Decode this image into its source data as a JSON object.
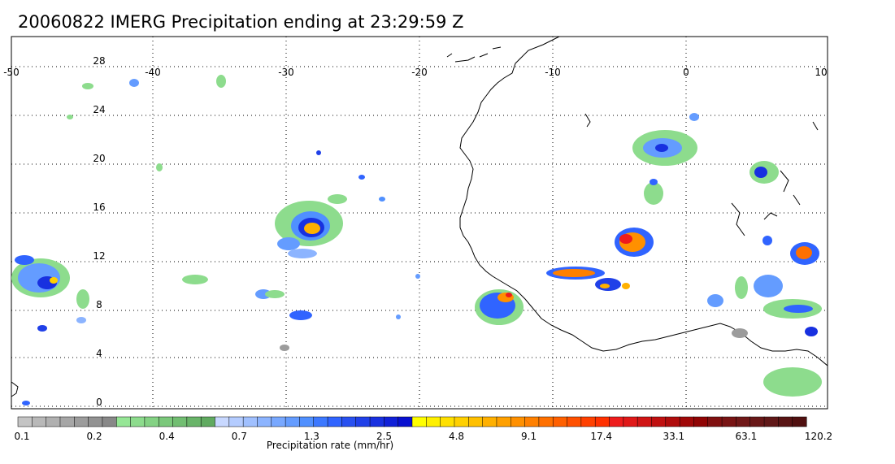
{
  "title": "20060822 IMERG Precipitation ending at 23:29:59 Z",
  "map": {
    "lon_ticks": [
      "-50",
      "-40",
      "-30",
      "-20",
      "-10",
      "0",
      "10"
    ],
    "lat_ticks": [
      "28",
      "24",
      "20",
      "16",
      "12",
      "8",
      "4",
      "0"
    ]
  },
  "colorbar": {
    "title": "Precipitation rate (mm/hr)",
    "tick_labels": [
      "0.1",
      "0.2",
      "0.4",
      "0.7",
      "1.3",
      "2.5",
      "4.8",
      "9.1",
      "17.4",
      "33.1",
      "63.1",
      "120.2"
    ],
    "colors": [
      "#c4c4c4",
      "#b8b8b8",
      "#b0b0b0",
      "#a6a6a6",
      "#9c9c9c",
      "#929292",
      "#888888",
      "#96e696",
      "#8ddc8d",
      "#84d284",
      "#7bc87b",
      "#72be72",
      "#69b469",
      "#60aa60",
      "#c8d8ff",
      "#b4ccff",
      "#a0c0ff",
      "#8cb4ff",
      "#78a8ff",
      "#649cff",
      "#5090ff",
      "#3c78ff",
      "#3064ff",
      "#2850f0",
      "#2040e8",
      "#1830e0",
      "#1020d8",
      "#0810d0",
      "#ffff00",
      "#fff000",
      "#ffe000",
      "#ffd000",
      "#ffc000",
      "#ffb000",
      "#ffa000",
      "#ff9000",
      "#ff8000",
      "#ff7000",
      "#ff6000",
      "#ff5000",
      "#ff4000",
      "#ff3000",
      "#ee1c1c",
      "#e01818",
      "#d01414",
      "#c01010",
      "#b00c0c",
      "#a00808",
      "#900404",
      "#801010",
      "#781414",
      "#701818",
      "#681818",
      "#601818",
      "#581414",
      "#501010"
    ]
  }
}
